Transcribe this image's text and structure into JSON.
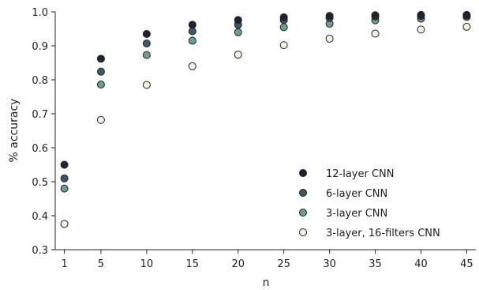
{
  "chart_data": {
    "type": "scatter",
    "xlabel": "n",
    "ylabel": "% accuracy",
    "x": [
      1,
      5,
      10,
      15,
      20,
      25,
      30,
      35,
      40,
      45
    ],
    "x_ticks": [
      1,
      5,
      10,
      15,
      20,
      25,
      30,
      35,
      40,
      45
    ],
    "y_ticks": [
      0.3,
      0.4,
      0.5,
      0.6,
      0.7,
      0.8,
      0.9,
      1.0
    ],
    "y_tick_labels": [
      "0.3",
      "0.4",
      "0.5",
      "0.6",
      "0.7",
      "0.8",
      "0.9",
      "1.0"
    ],
    "xlim": [
      0,
      46
    ],
    "ylim": [
      0.3,
      1.0
    ],
    "grid": false,
    "legend_position": "bottom-right",
    "series": [
      {
        "name": "12-layer CNN",
        "color": "#1e2430",
        "values": [
          0.55,
          0.862,
          0.935,
          0.962,
          0.976,
          0.984,
          0.988,
          0.99,
          0.991,
          0.991
        ]
      },
      {
        "name": "6-layer CNN",
        "color": "#3e5866",
        "values": [
          0.51,
          0.824,
          0.907,
          0.943,
          0.962,
          0.976,
          0.982,
          0.986,
          0.988,
          0.989
        ]
      },
      {
        "name": "3-layer CNN",
        "color": "#6e9e8c",
        "values": [
          0.48,
          0.786,
          0.873,
          0.915,
          0.94,
          0.955,
          0.965,
          0.975,
          0.98,
          0.985
        ]
      },
      {
        "name": "3-layer, 16-filters CNN",
        "color": "#f4f1e4",
        "values": [
          0.376,
          0.682,
          0.785,
          0.84,
          0.874,
          0.902,
          0.921,
          0.936,
          0.948,
          0.956
        ]
      }
    ]
  }
}
